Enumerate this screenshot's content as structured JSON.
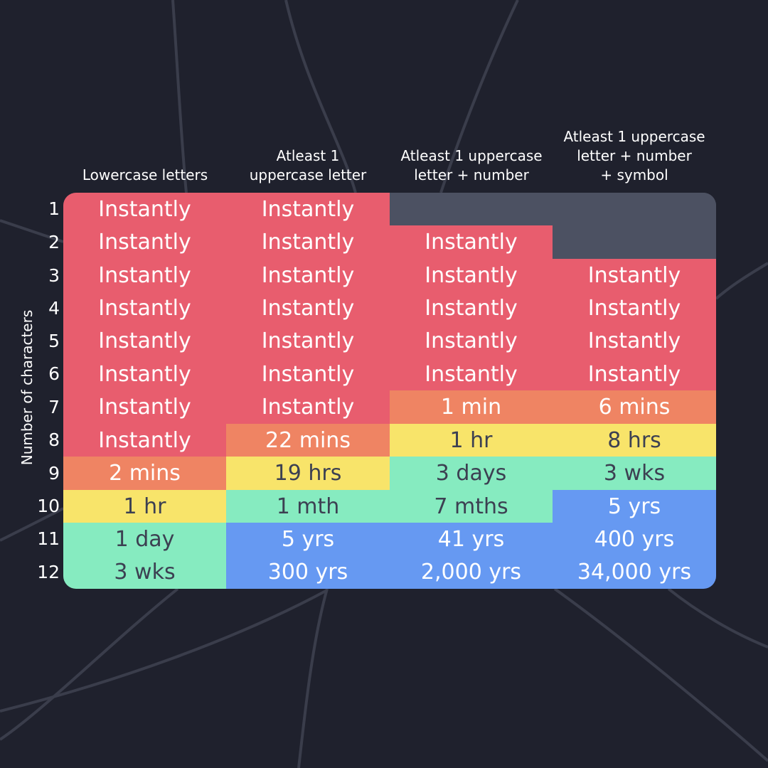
{
  "chart_data": {
    "type": "table",
    "y_axis_label": "Number of characters",
    "columns": [
      "Lowercase letters",
      "Atleast 1\nuppercase letter",
      "Atleast 1 uppercase\nletter + number",
      "Atleast 1 uppercase\nletter + number\n+ symbol"
    ],
    "rows": [
      "1",
      "2",
      "3",
      "4",
      "5",
      "6",
      "7",
      "8",
      "9",
      "10",
      "11",
      "12"
    ],
    "cells": [
      [
        "Instantly",
        "Instantly",
        "",
        ""
      ],
      [
        "Instantly",
        "Instantly",
        "Instantly",
        ""
      ],
      [
        "Instantly",
        "Instantly",
        "Instantly",
        "Instantly"
      ],
      [
        "Instantly",
        "Instantly",
        "Instantly",
        "Instantly"
      ],
      [
        "Instantly",
        "Instantly",
        "Instantly",
        "Instantly"
      ],
      [
        "Instantly",
        "Instantly",
        "Instantly",
        "Instantly"
      ],
      [
        "Instantly",
        "Instantly",
        "1 min",
        "6 mins"
      ],
      [
        "Instantly",
        "22 mins",
        "1 hr",
        "8 hrs"
      ],
      [
        "2 mins",
        "19 hrs",
        "3 days",
        "3 wks"
      ],
      [
        "1 hr",
        "1 mth",
        "7 mths",
        "5 yrs"
      ],
      [
        "1 day",
        "5 yrs",
        "41 yrs",
        "400 yrs"
      ],
      [
        "3 wks",
        "300 yrs",
        "2,000 yrs",
        "34,000 yrs"
      ]
    ],
    "color_scale": {
      "instant": "#e85d6e",
      "minutes": "#ef8463",
      "hours": "#f8e46a",
      "days_to_months": "#86ebc0",
      "years": "#6699f2",
      "not_applicable": "#4c5162"
    },
    "text_colors": {
      "light": "#ffffff",
      "dark": "#3c4052"
    }
  }
}
